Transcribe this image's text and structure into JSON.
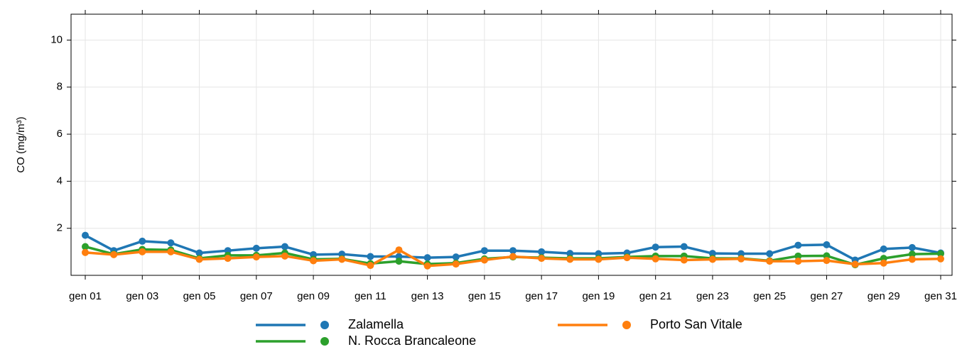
{
  "chart_data": {
    "type": "line",
    "y_label": "CO (mg/m³)",
    "categories": [
      "gen 01",
      null,
      "gen 03",
      null,
      "gen 05",
      null,
      "gen 07",
      null,
      "gen 09",
      null,
      "gen 11",
      null,
      "gen 13",
      null,
      "gen 15",
      null,
      "gen 17",
      null,
      "gen 19",
      null,
      "gen 21",
      null,
      "gen 23",
      null,
      "gen 25",
      null,
      "gen 27",
      null,
      "gen 29",
      null,
      "gen 31"
    ],
    "series": [
      {
        "name": "Zalamella",
        "color": "#1f77b4",
        "values": [
          1.7,
          1.05,
          1.45,
          1.38,
          0.95,
          1.05,
          1.15,
          1.22,
          0.88,
          0.9,
          0.8,
          0.8,
          0.75,
          0.78,
          1.05,
          1.05,
          1.0,
          0.93,
          0.92,
          0.95,
          1.2,
          1.22,
          0.93,
          0.92,
          0.92,
          1.28,
          1.3,
          0.65,
          1.12,
          1.18,
          0.95
        ]
      },
      {
        "name": "N. Rocca Brancaleone",
        "color": "#2ca02c",
        "values": [
          1.22,
          0.9,
          1.1,
          1.08,
          0.72,
          0.85,
          0.85,
          0.95,
          0.68,
          0.7,
          0.5,
          0.6,
          0.48,
          0.52,
          0.7,
          0.78,
          0.75,
          0.72,
          0.72,
          0.78,
          0.82,
          0.82,
          0.72,
          0.72,
          0.62,
          0.82,
          0.83,
          0.45,
          0.72,
          0.9,
          0.92
        ]
      },
      {
        "name": "Porto San Vitale",
        "color": "#ff7f0e",
        "values": [
          0.97,
          0.88,
          1.0,
          1.0,
          0.68,
          0.72,
          0.78,
          0.82,
          0.62,
          0.68,
          0.42,
          1.08,
          0.4,
          0.48,
          0.65,
          0.8,
          0.72,
          0.68,
          0.68,
          0.75,
          0.7,
          0.65,
          0.68,
          0.7,
          0.6,
          0.6,
          0.63,
          0.47,
          0.52,
          0.68,
          0.7
        ]
      }
    ],
    "ylim": [
      0,
      11.1
    ],
    "yticks": [
      2,
      4,
      6,
      8,
      10
    ],
    "grid": true
  }
}
